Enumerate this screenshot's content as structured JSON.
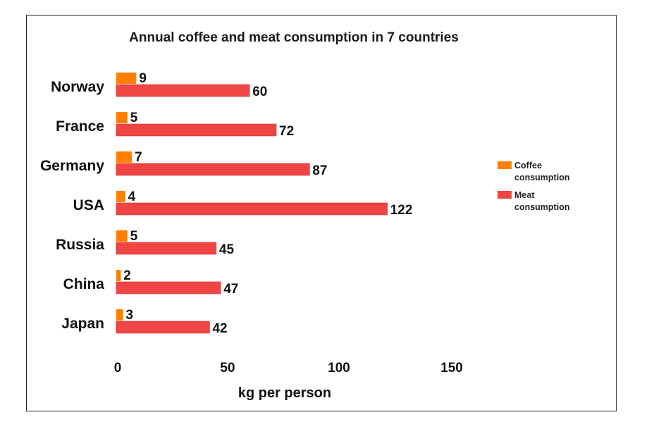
{
  "chart_data": {
    "type": "bar",
    "orientation": "horizontal",
    "title": "Annual coffee and meat consumption in 7 countries",
    "categories": [
      "Norway",
      "France",
      "Germany",
      "USA",
      "Russia",
      "China",
      "Japan"
    ],
    "series": [
      {
        "name": "Coffee consumption",
        "color": "#ff7f00",
        "values": [
          9,
          5,
          7,
          4,
          5,
          2,
          3
        ]
      },
      {
        "name": "Meat consumption",
        "color": "#f04545",
        "values": [
          60,
          72,
          87,
          122,
          45,
          47,
          42
        ]
      }
    ],
    "xlabel": "kg per person",
    "ylabel": "",
    "xticks": [
      "0",
      "50",
      "100",
      "150"
    ],
    "xlim": [
      0,
      150
    ],
    "grid": false,
    "legend_position": "right",
    "legend_labels": [
      [
        "Coffee",
        "consumption"
      ],
      [
        "Meat",
        "consumption"
      ]
    ]
  }
}
